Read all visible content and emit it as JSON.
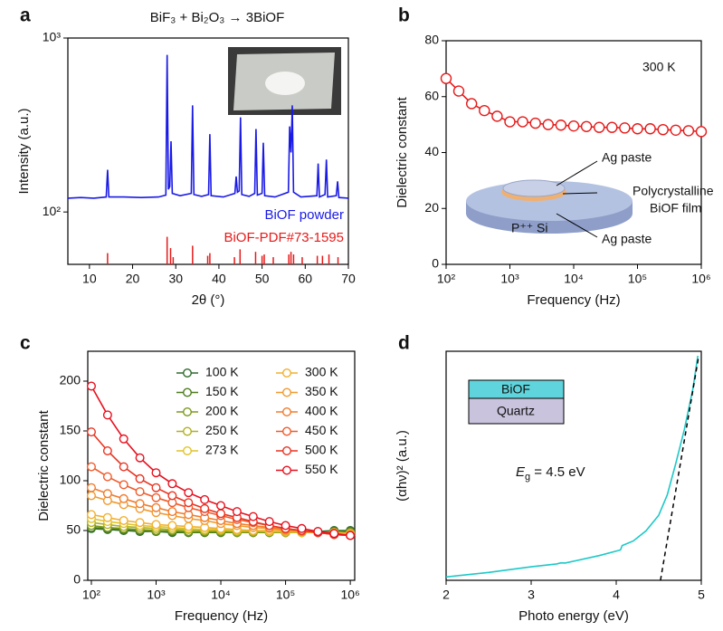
{
  "chart_data": [
    {
      "type": "line",
      "panel": "a",
      "title": "BiF₃ + Bi₂O₃ → 3BiOF",
      "xlabel": "2θ (°)",
      "ylabel": "Intensity (a.u.)",
      "yscale": "log",
      "xlim": [
        5,
        70
      ],
      "xticks": [
        10,
        20,
        30,
        40,
        50,
        60,
        70
      ],
      "ylim": [
        50,
        1000
      ],
      "yticks": [
        {
          "value": 100,
          "label": "10²"
        },
        {
          "value": 1000,
          "label": "10³"
        }
      ],
      "series": [
        {
          "name": "BiOF powder",
          "color": "#1a1ae6",
          "style": "line",
          "x": [
            5,
            8,
            11,
            13.9,
            14.2,
            14.5,
            18,
            22,
            26,
            27.7,
            28,
            28.3,
            28.6,
            28.9,
            29.2,
            31,
            33.6,
            33.9,
            34.2,
            36,
            37.6,
            37.9,
            38.2,
            41,
            43.7,
            44,
            44.3,
            44.7,
            45,
            45.3,
            47,
            48.3,
            48.6,
            48.9,
            50,
            50.3,
            50.6,
            53,
            56.1,
            56.4,
            56.7,
            57,
            57.3,
            59,
            62.7,
            63,
            63.3,
            64.6,
            64.9,
            65.2,
            67.2,
            67.5,
            67.8,
            70
          ],
          "values": [
            120,
            121,
            120,
            122,
            175,
            122,
            122,
            121,
            122,
            125,
            800,
            135,
            140,
            255,
            128,
            124,
            128,
            410,
            126,
            123,
            126,
            280,
            124,
            122,
            128,
            160,
            130,
            132,
            350,
            126,
            123,
            128,
            300,
            125,
            128,
            250,
            124,
            122,
            130,
            310,
            220,
            410,
            130,
            122,
            124,
            190,
            122,
            126,
            200,
            122,
            124,
            150,
            121,
            120
          ]
        },
        {
          "name": "BiOF-PDF#73-1595",
          "color": "#e61a1a",
          "style": "stick",
          "x": [
            14.2,
            28,
            28.8,
            29.4,
            33.9,
            37.4,
            37.9,
            43.6,
            44.9,
            48.5,
            50,
            50.5,
            52.6,
            56.2,
            56.7,
            57.3,
            59.3,
            62.8,
            64,
            65.5,
            67.6
          ],
          "values": [
            58,
            72,
            62,
            55,
            64,
            56,
            58,
            55,
            61,
            59,
            56,
            57,
            55,
            57,
            59,
            57,
            55,
            56,
            56,
            57,
            55
          ]
        }
      ]
    },
    {
      "type": "line",
      "panel": "b",
      "xlabel": "Frequency (Hz)",
      "ylabel": "Dielectric constant",
      "xscale": "log",
      "xlim": [
        100,
        1000000
      ],
      "xticks": [
        {
          "value": 100,
          "label": "10²"
        },
        {
          "value": 1000,
          "label": "10³"
        },
        {
          "value": 10000,
          "label": "10⁴"
        },
        {
          "value": 100000,
          "label": "10⁵"
        },
        {
          "value": 1000000,
          "label": "10⁶"
        }
      ],
      "ylim": [
        0,
        80
      ],
      "yticks": [
        0,
        20,
        40,
        60,
        80
      ],
      "annotations": [
        "300 K",
        "Ag paste",
        "Polycrystalline",
        "BiOF film",
        "P⁺⁺ Si",
        "Ag paste"
      ],
      "series": [
        {
          "color": "#e61a1a",
          "style": "marker-line",
          "x": [
            100,
            158,
            251,
            398,
            631,
            1000,
            1585,
            2512,
            3981,
            6310,
            10000,
            15849,
            25119,
            39811,
            63096,
            100000,
            158489,
            251189,
            398107,
            630957,
            1000000
          ],
          "values": [
            66.5,
            62,
            57.5,
            55,
            53,
            51,
            51,
            50.5,
            50,
            49.8,
            49.5,
            49.3,
            49,
            49,
            48.8,
            48.5,
            48.5,
            48.2,
            48,
            47.8,
            47.5
          ]
        }
      ]
    },
    {
      "type": "line",
      "panel": "c",
      "xlabel": "Frequency (Hz)",
      "ylabel": "Dielectric constant",
      "xscale": "log",
      "xlim": [
        88,
        1170000
      ],
      "xticks": [
        {
          "value": 100,
          "label": "10²"
        },
        {
          "value": 1000,
          "label": "10³"
        },
        {
          "value": 10000,
          "label": "10⁴"
        },
        {
          "value": 100000,
          "label": "10⁵"
        },
        {
          "value": 1000000,
          "label": "10⁶"
        }
      ],
      "ylim": [
        0,
        230
      ],
      "yticks": [
        0,
        50,
        100,
        150,
        200
      ],
      "x": [
        100,
        178,
        316,
        562,
        1000,
        1778,
        3162,
        5623,
        10000,
        17783,
        31623,
        56234,
        100000,
        177828,
        316228,
        562341,
        1000000
      ],
      "series": [
        {
          "name": "100 K",
          "color": "#2e6b2e",
          "values": [
            52,
            51,
            50,
            49,
            49,
            48,
            48,
            48,
            48,
            48,
            48,
            48,
            48,
            49,
            49,
            50,
            50
          ]
        },
        {
          "name": "150 K",
          "color": "#4d7d1c",
          "values": [
            53,
            52,
            51,
            50,
            49,
            49,
            48,
            48,
            48,
            48,
            48,
            48,
            48,
            48,
            48,
            49,
            49
          ]
        },
        {
          "name": "200 K",
          "color": "#7a9a1c",
          "values": [
            55,
            53,
            52,
            51,
            50,
            50,
            49,
            49,
            49,
            48,
            48,
            48,
            48,
            48,
            48,
            48,
            48
          ]
        },
        {
          "name": "250 K",
          "color": "#b0b020",
          "values": [
            58,
            56,
            54,
            53,
            52,
            51,
            51,
            50,
            50,
            49,
            49,
            49,
            48,
            48,
            48,
            48,
            47
          ]
        },
        {
          "name": "273 K",
          "color": "#e0c428",
          "values": [
            62,
            59,
            57,
            55,
            54,
            53,
            52,
            51,
            51,
            50,
            50,
            49,
            49,
            48,
            48,
            48,
            47
          ]
        },
        {
          "name": "300 K",
          "color": "#f2b030",
          "values": [
            66,
            63,
            60,
            58,
            56,
            55,
            54,
            53,
            52,
            51,
            50,
            50,
            49,
            49,
            48,
            48,
            47
          ]
        },
        {
          "name": "350 K",
          "color": "#f09a30",
          "values": [
            85,
            80,
            76,
            72,
            68,
            65,
            62,
            60,
            57,
            55,
            53,
            52,
            50,
            49,
            48,
            47,
            46
          ]
        },
        {
          "name": "400 K",
          "color": "#f07c2c",
          "values": [
            93,
            87,
            82,
            77,
            73,
            69,
            66,
            63,
            60,
            57,
            55,
            53,
            51,
            49,
            48,
            46,
            45
          ]
        },
        {
          "name": "450 K",
          "color": "#f05a2a",
          "values": [
            114,
            104,
            96,
            89,
            83,
            78,
            73,
            69,
            65,
            61,
            58,
            55,
            52,
            50,
            48,
            46,
            45
          ]
        },
        {
          "name": "500 K",
          "color": "#e83422",
          "values": [
            149,
            130,
            114,
            102,
            93,
            85,
            78,
            72,
            67,
            63,
            59,
            55,
            52,
            50,
            48,
            46,
            45
          ]
        },
        {
          "name": "550 K",
          "color": "#e6101e",
          "values": [
            195,
            166,
            142,
            123,
            108,
            97,
            88,
            81,
            75,
            69,
            64,
            59,
            55,
            52,
            49,
            47,
            45
          ]
        }
      ]
    },
    {
      "type": "line",
      "panel": "d",
      "xlabel": "Photo energy (eV)",
      "ylabel": "(αhν)² (a.u.)",
      "xlim": [
        2,
        5
      ],
      "xticks": [
        2,
        3,
        4,
        5
      ],
      "ylim": [
        0,
        102
      ],
      "annotation": [
        "E",
        "g",
        " = 4.5 eV"
      ],
      "inset_labels": [
        "BiOF",
        "Quartz"
      ],
      "series": [
        {
          "color": "#1ec8c8",
          "style": "line",
          "x": [
            2,
            2.5,
            3,
            3.3,
            3.35,
            3.4,
            3.8,
            4.05,
            4.07,
            4.2,
            4.35,
            4.5,
            4.6,
            4.7,
            4.8,
            4.9,
            4.96
          ],
          "values": [
            1.5,
            3.5,
            6,
            7.3,
            7.8,
            7.7,
            11,
            13.5,
            15.5,
            17.5,
            22,
            29,
            38,
            52,
            67,
            85,
            100
          ]
        },
        {
          "color": "#000000",
          "style": "dashed",
          "x": [
            4.52,
            4.97
          ],
          "values": [
            0,
            100
          ]
        }
      ]
    }
  ]
}
